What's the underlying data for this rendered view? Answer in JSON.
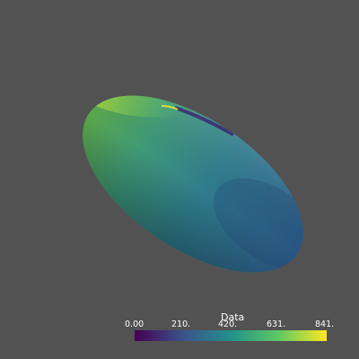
{
  "viewer": {
    "background_color": "#525252"
  },
  "object": {
    "shape": "ellipsoid",
    "colormap": "viridis",
    "colormap_stops": [
      "#440154",
      "#3b528b",
      "#21918c",
      "#5ec962",
      "#fde725"
    ]
  },
  "scalar_bar": {
    "title": "Data",
    "ticks": [
      "0.00",
      "210.",
      "420.",
      "631.",
      "841."
    ],
    "range": [
      0,
      841
    ]
  }
}
